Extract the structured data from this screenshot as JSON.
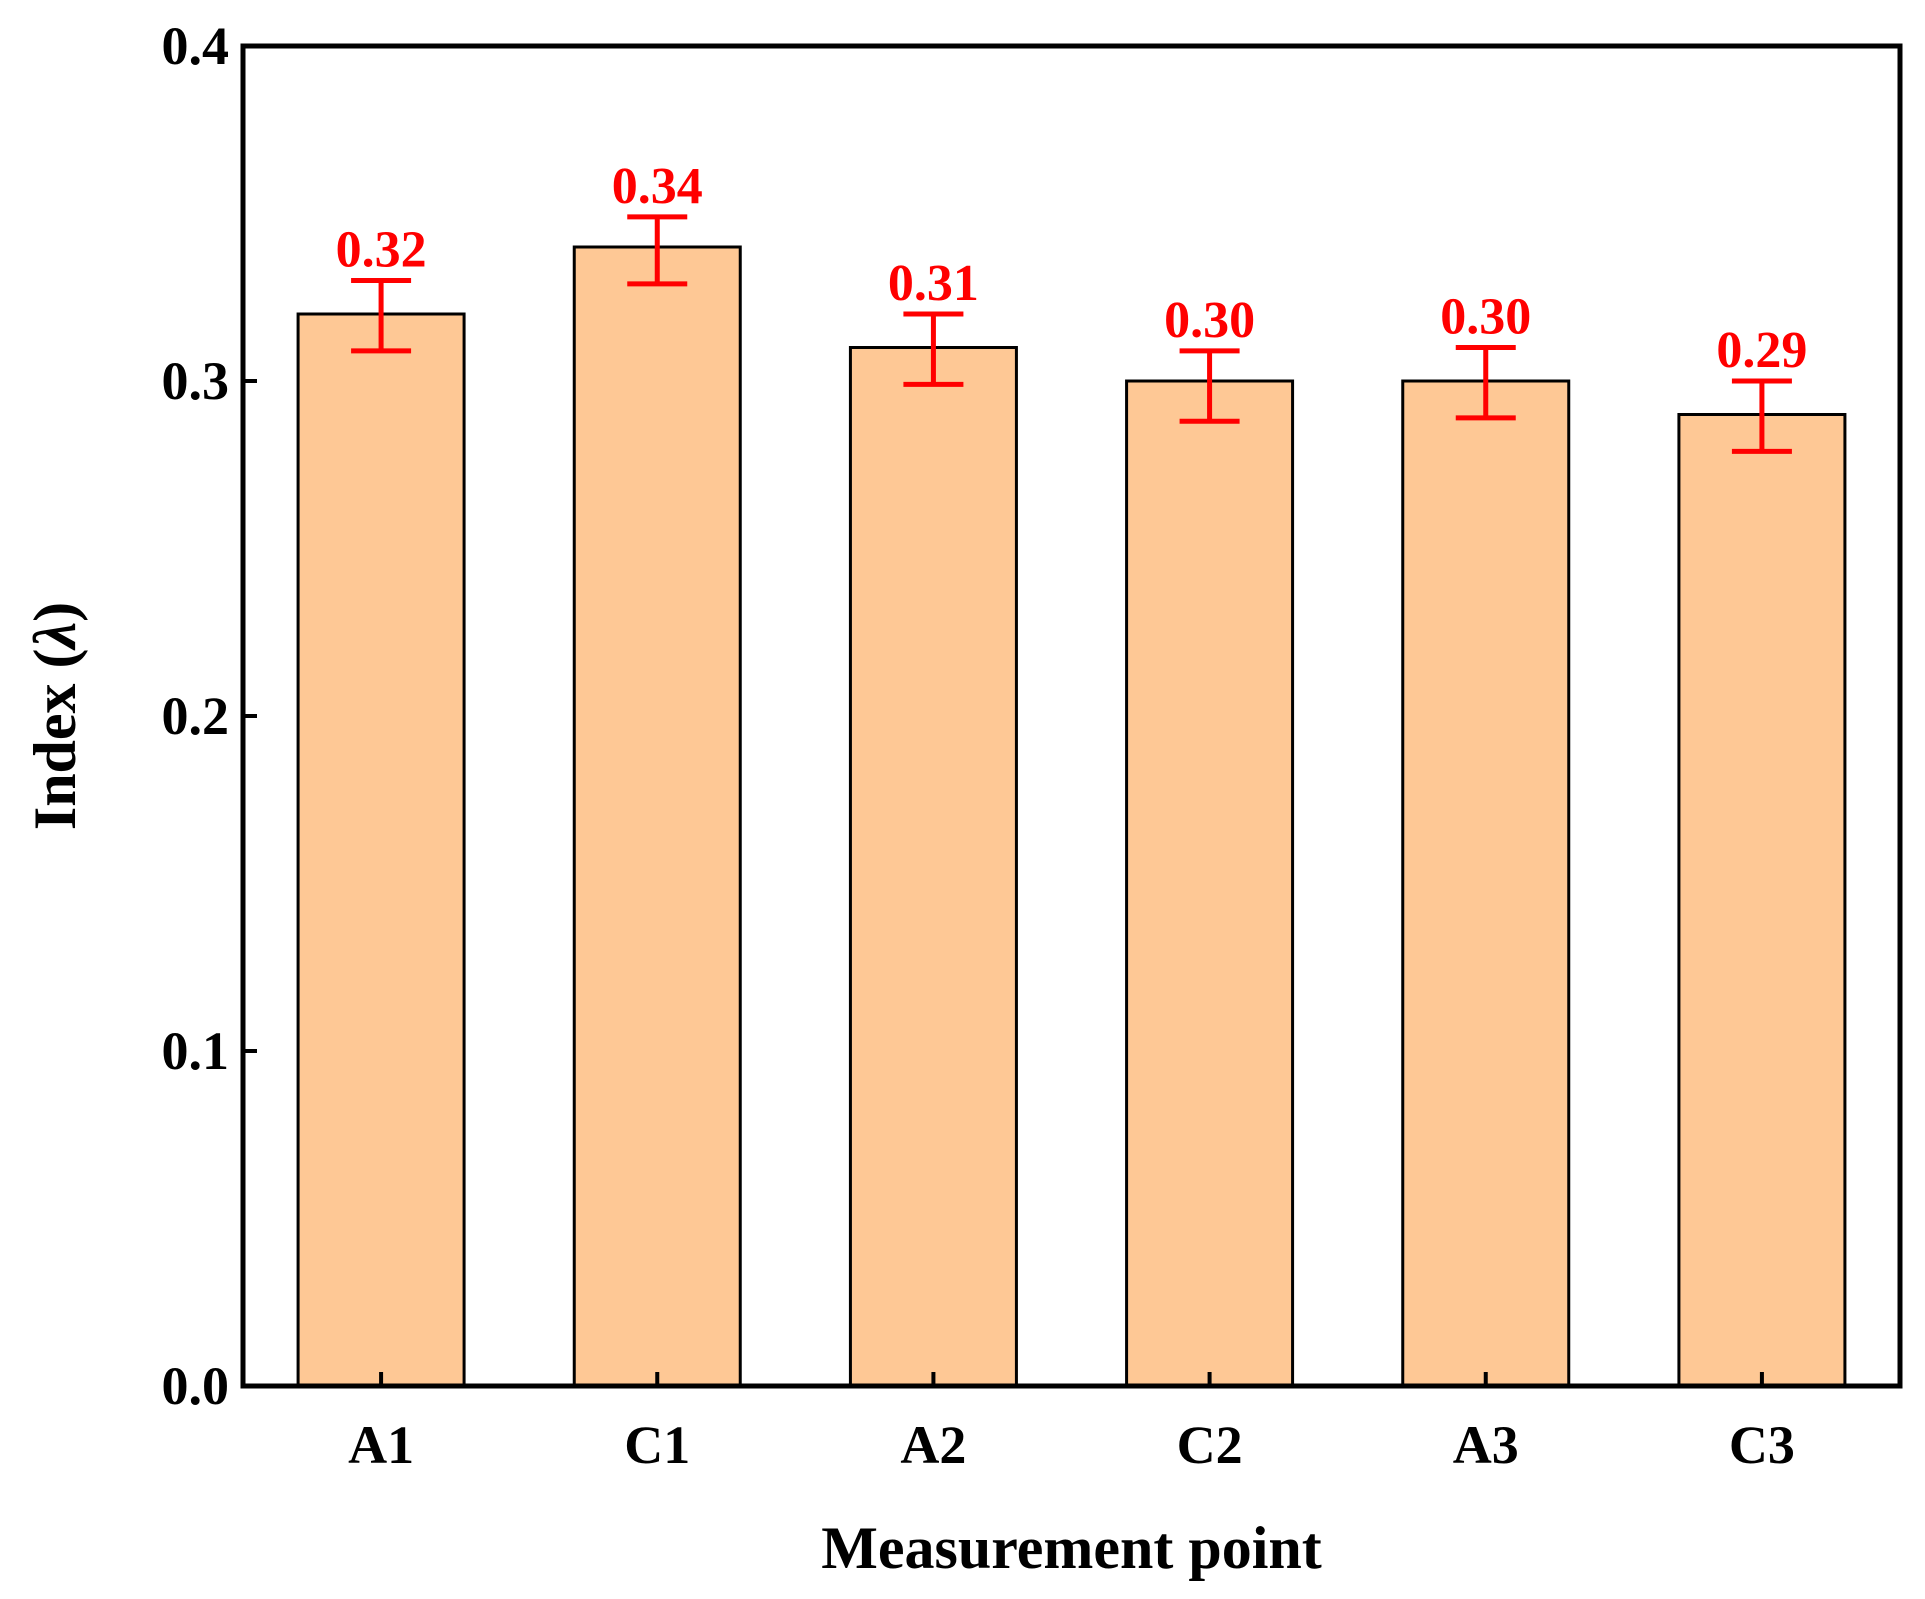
{
  "chart_data": {
    "type": "bar",
    "title": "",
    "xlabel": "Measurement point",
    "ylabel": "Index (λ)",
    "ylabel_parts": {
      "text": "Index (",
      "symbol": "λ",
      "close": ")"
    },
    "categories": [
      "A1",
      "C1",
      "A2",
      "C2",
      "A3",
      "C3"
    ],
    "values": [
      0.32,
      0.34,
      0.31,
      0.3,
      0.3,
      0.29
    ],
    "error_lower": [
      0.309,
      0.329,
      0.299,
      0.288,
      0.289,
      0.279
    ],
    "error_upper": [
      0.33,
      0.349,
      0.32,
      0.309,
      0.31,
      0.3
    ],
    "data_labels": [
      "0.32",
      "0.34",
      "0.31",
      "0.30",
      "0.30",
      "0.29"
    ],
    "ylim": [
      0.0,
      0.4
    ],
    "yticks": [
      "0.0",
      "0.1",
      "0.2",
      "0.3",
      "0.4"
    ],
    "ytick_values": [
      0.0,
      0.1,
      0.2,
      0.3,
      0.4
    ],
    "grid": false,
    "legend": "none",
    "colors": {
      "bar_fill": "#FEC895",
      "bar_stroke": "#000000",
      "error_bar": "#FF0000",
      "data_label": "#FF0000",
      "axes": "#000000"
    }
  }
}
